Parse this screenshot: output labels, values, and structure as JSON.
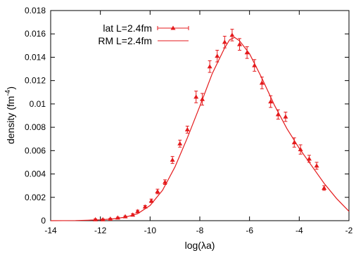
{
  "chart_data": {
    "type": "scatter",
    "xlabel": "log(λa)",
    "ylabel_main": "density (fm",
    "ylabel_exp": "-4",
    "ylabel_end": ")",
    "xlim": [
      -14,
      -2
    ],
    "ylim": [
      0,
      0.018
    ],
    "xticks": [
      "-14",
      "-12",
      "-10",
      "-8",
      "-6",
      "-4",
      "-2"
    ],
    "yticks": [
      "0",
      "0.002",
      "0.004",
      "0.006",
      "0.008",
      "0.01",
      "0.012",
      "0.014",
      "0.016",
      "0.018"
    ],
    "grid": false,
    "legend_position": "top-left",
    "color": "#e41a1c",
    "series": [
      {
        "name": "lat L=2.4fm",
        "kind": "points-with-errorbars",
        "marker": "triangle",
        "points": [
          {
            "x": -12.2,
            "y": 0.0001,
            "err": 5e-05
          },
          {
            "x": -11.9,
            "y": 0.0001,
            "err": 5e-05
          },
          {
            "x": -11.6,
            "y": 0.00015,
            "err": 5e-05
          },
          {
            "x": -11.3,
            "y": 0.00025,
            "err": 5e-05
          },
          {
            "x": -11.0,
            "y": 0.00035,
            "err": 5e-05
          },
          {
            "x": -10.7,
            "y": 0.0005,
            "err": 0.0001
          },
          {
            "x": -10.5,
            "y": 0.0008,
            "err": 0.0001
          },
          {
            "x": -10.2,
            "y": 0.0012,
            "err": 0.0001
          },
          {
            "x": -9.95,
            "y": 0.0017,
            "err": 0.00015
          },
          {
            "x": -9.7,
            "y": 0.0025,
            "err": 0.0002
          },
          {
            "x": -9.4,
            "y": 0.0033,
            "err": 0.0002
          },
          {
            "x": -9.1,
            "y": 0.0052,
            "err": 0.0003
          },
          {
            "x": -8.8,
            "y": 0.0066,
            "err": 0.0003
          },
          {
            "x": -8.5,
            "y": 0.0078,
            "err": 0.0003
          },
          {
            "x": -8.15,
            "y": 0.0106,
            "err": 0.0005
          },
          {
            "x": -7.9,
            "y": 0.0104,
            "err": 0.0005
          },
          {
            "x": -7.6,
            "y": 0.0132,
            "err": 0.0005
          },
          {
            "x": -7.3,
            "y": 0.0141,
            "err": 0.0005
          },
          {
            "x": -7.0,
            "y": 0.0153,
            "err": 0.0005
          },
          {
            "x": -6.7,
            "y": 0.0159,
            "err": 0.0005
          },
          {
            "x": -6.4,
            "y": 0.0151,
            "err": 0.0005
          },
          {
            "x": -6.1,
            "y": 0.0144,
            "err": 0.0005
          },
          {
            "x": -5.8,
            "y": 0.0133,
            "err": 0.0005
          },
          {
            "x": -5.5,
            "y": 0.0118,
            "err": 0.0005
          },
          {
            "x": -5.15,
            "y": 0.0102,
            "err": 0.0005
          },
          {
            "x": -4.85,
            "y": 0.0091,
            "err": 0.0004
          },
          {
            "x": -4.55,
            "y": 0.0089,
            "err": 0.0004
          },
          {
            "x": -4.2,
            "y": 0.0067,
            "err": 0.0004
          },
          {
            "x": -3.95,
            "y": 0.0061,
            "err": 0.0004
          },
          {
            "x": -3.6,
            "y": 0.0053,
            "err": 0.0003
          },
          {
            "x": -3.3,
            "y": 0.0047,
            "err": 0.0003
          },
          {
            "x": -3.0,
            "y": 0.0028,
            "err": 0.0002
          }
        ]
      },
      {
        "name": "RM L=2.4fm",
        "kind": "line",
        "points": [
          {
            "x": -14.0,
            "y": 0.0
          },
          {
            "x": -13.0,
            "y": 1e-05
          },
          {
            "x": -12.5,
            "y": 4e-05
          },
          {
            "x": -12.0,
            "y": 8e-05
          },
          {
            "x": -11.5,
            "y": 0.00015
          },
          {
            "x": -11.0,
            "y": 0.0003
          },
          {
            "x": -10.5,
            "y": 0.0006
          },
          {
            "x": -10.0,
            "y": 0.0013
          },
          {
            "x": -9.5,
            "y": 0.0026
          },
          {
            "x": -9.0,
            "y": 0.0046
          },
          {
            "x": -8.5,
            "y": 0.0071
          },
          {
            "x": -8.0,
            "y": 0.0098
          },
          {
            "x": -7.5,
            "y": 0.0126
          },
          {
            "x": -7.0,
            "y": 0.0148
          },
          {
            "x": -6.8,
            "y": 0.0155
          },
          {
            "x": -6.6,
            "y": 0.0157
          },
          {
            "x": -6.4,
            "y": 0.0154
          },
          {
            "x": -6.0,
            "y": 0.0143
          },
          {
            "x": -5.5,
            "y": 0.0122
          },
          {
            "x": -5.0,
            "y": 0.0099
          },
          {
            "x": -4.5,
            "y": 0.0079
          },
          {
            "x": -4.0,
            "y": 0.0062
          },
          {
            "x": -3.5,
            "y": 0.0047
          },
          {
            "x": -3.0,
            "y": 0.0032
          },
          {
            "x": -2.5,
            "y": 0.0019
          },
          {
            "x": -2.0,
            "y": 0.0008
          }
        ]
      }
    ]
  }
}
